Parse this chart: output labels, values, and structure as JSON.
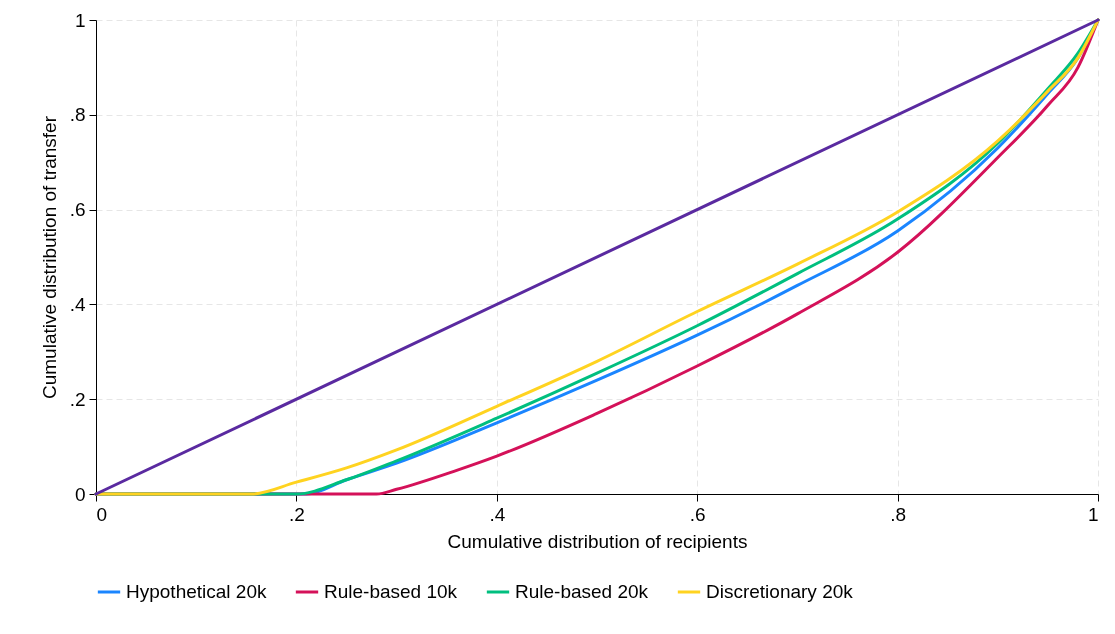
{
  "chart_data": {
    "type": "line",
    "xlabel": "Cumulative distribution of recipients",
    "ylabel": "Cumulative distribution of transfer",
    "xlim": [
      0,
      1
    ],
    "ylim": [
      0,
      1
    ],
    "xticks": [
      0,
      {
        "value": 0.2,
        "label": ".2"
      },
      {
        "value": 0.4,
        "label": ".4"
      },
      {
        "value": 0.6,
        "label": ".6"
      },
      {
        "value": 0.8,
        "label": ".8"
      },
      1
    ],
    "yticks": [
      0,
      {
        "value": 0.2,
        "label": ".2"
      },
      {
        "value": 0.4,
        "label": ".4"
      },
      {
        "value": 0.6,
        "label": ".6"
      },
      {
        "value": 0.8,
        "label": ".8"
      },
      1
    ],
    "grid": true,
    "legend": "bottom",
    "marker": "none",
    "line_style": "solid",
    "series": [
      {
        "name": "Hypothetical 20k",
        "color": "#1a85ff",
        "x": [
          0,
          0.1,
          0.21,
          0.25,
          0.3,
          0.4,
          0.5,
          0.6,
          0.7,
          0.8,
          0.9,
          0.95,
          0.98,
          1
        ],
        "values": [
          0,
          0,
          0,
          0.03,
          0.065,
          0.15,
          0.24,
          0.335,
          0.44,
          0.555,
          0.73,
          0.845,
          0.92,
          1
        ]
      },
      {
        "name": "Rule-based 10k",
        "color": "#d41159",
        "x": [
          0,
          0.1,
          0.2,
          0.28,
          0.3,
          0.36,
          0.4,
          0.5,
          0.6,
          0.7,
          0.8,
          0.9,
          0.95,
          0.98,
          1
        ],
        "values": [
          0,
          0,
          0,
          0,
          0.01,
          0.05,
          0.08,
          0.17,
          0.27,
          0.38,
          0.51,
          0.71,
          0.82,
          0.9,
          1
        ]
      },
      {
        "name": "Rule-based 20k",
        "color": "#00bf7f",
        "x": [
          0,
          0.1,
          0.2,
          0.25,
          0.3,
          0.4,
          0.5,
          0.6,
          0.7,
          0.8,
          0.9,
          0.95,
          0.98,
          1
        ],
        "values": [
          0,
          0,
          0,
          0.03,
          0.07,
          0.16,
          0.255,
          0.355,
          0.465,
          0.58,
          0.74,
          0.855,
          0.93,
          1
        ]
      },
      {
        "name": "Discretionary 20k",
        "color": "#ffd320",
        "x": [
          0,
          0.1,
          0.155,
          0.2,
          0.25,
          0.3,
          0.4,
          0.5,
          0.6,
          0.7,
          0.8,
          0.9,
          0.95,
          0.98,
          1
        ],
        "values": [
          0,
          0,
          0,
          0.025,
          0.055,
          0.093,
          0.185,
          0.28,
          0.385,
          0.485,
          0.595,
          0.745,
          0.85,
          0.92,
          1
        ]
      },
      {
        "color": "#5a2aa0",
        "x": [
          0,
          1
        ],
        "values": [
          0,
          1
        ]
      }
    ]
  }
}
